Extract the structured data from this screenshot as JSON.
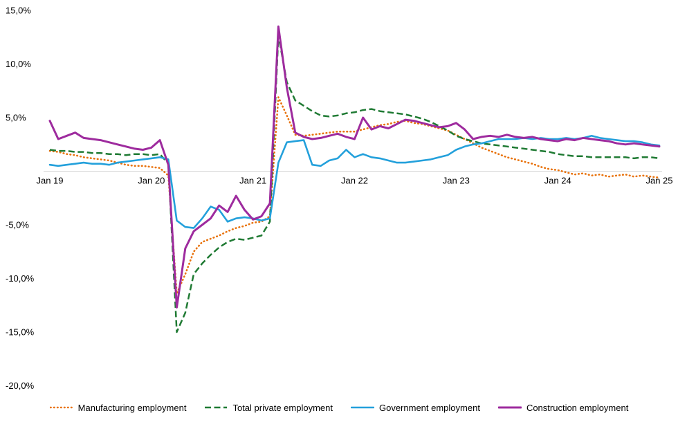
{
  "chart_data": {
    "type": "line",
    "grid": "off",
    "background": "#ffffff",
    "axis_color": "#d6d6d6",
    "x_axis": {
      "unit": "month",
      "start_label": "Jan 19",
      "end_label": "Jan 25",
      "ticks": [
        {
          "index": 0,
          "label": "Jan 19"
        },
        {
          "index": 12,
          "label": "Jan 20"
        },
        {
          "index": 24,
          "label": "Jan 21"
        },
        {
          "index": 36,
          "label": "Jan 22"
        },
        {
          "index": 48,
          "label": "Jan 23"
        },
        {
          "index": 60,
          "label": "Jan 24"
        },
        {
          "index": 72,
          "label": "Jan 25"
        }
      ]
    },
    "y_axis": {
      "min": -20,
      "max": 15,
      "ticks": [
        {
          "value": 15,
          "label": "15,0%"
        },
        {
          "value": 10,
          "label": "10,0%"
        },
        {
          "value": 5,
          "label": "5,0%"
        },
        {
          "value": -5,
          "label": "-5,0%"
        },
        {
          "value": -10,
          "label": "-10,0%"
        },
        {
          "value": -15,
          "label": "-15,0%"
        },
        {
          "value": -20,
          "label": "-20,0%"
        }
      ]
    },
    "legend": {
      "position": "bottom"
    },
    "series": [
      {
        "name": "Manufacturing employment",
        "color": "#e8720c",
        "style": "dotted",
        "values": [
          1.9,
          1.8,
          1.6,
          1.5,
          1.3,
          1.2,
          1.1,
          1.0,
          0.8,
          0.6,
          0.5,
          0.5,
          0.4,
          0.3,
          -0.4,
          -11.4,
          -9.6,
          -7.5,
          -6.6,
          -6.3,
          -6.0,
          -5.6,
          -5.3,
          -5.1,
          -4.8,
          -4.7,
          -4.2,
          6.9,
          5.2,
          3.4,
          3.3,
          3.4,
          3.5,
          3.6,
          3.7,
          3.7,
          3.7,
          3.9,
          4.1,
          4.3,
          4.4,
          4.6,
          4.7,
          4.5,
          4.4,
          4.2,
          4.0,
          3.8,
          3.4,
          3.0,
          2.6,
          2.2,
          1.9,
          1.6,
          1.3,
          1.1,
          0.9,
          0.7,
          0.4,
          0.2,
          0.1,
          -0.1,
          -0.3,
          -0.2,
          -0.4,
          -0.3,
          -0.5,
          -0.4,
          -0.3,
          -0.5,
          -0.4,
          -0.5,
          -0.6
        ]
      },
      {
        "name": "Total private employment",
        "color": "#1f7a33",
        "style": "dashed",
        "values": [
          2.0,
          1.9,
          1.9,
          1.8,
          1.8,
          1.7,
          1.7,
          1.6,
          1.6,
          1.5,
          1.6,
          1.6,
          1.5,
          1.6,
          0.7,
          -15.0,
          -13.2,
          -9.6,
          -8.6,
          -7.8,
          -7.1,
          -6.6,
          -6.3,
          -6.4,
          -6.2,
          -6.0,
          -4.7,
          12.7,
          8.3,
          6.6,
          6.1,
          5.6,
          5.2,
          5.1,
          5.2,
          5.4,
          5.5,
          5.7,
          5.8,
          5.6,
          5.5,
          5.4,
          5.3,
          5.1,
          4.9,
          4.6,
          4.2,
          3.8,
          3.3,
          3.0,
          2.8,
          2.6,
          2.5,
          2.4,
          2.3,
          2.2,
          2.1,
          2.0,
          1.9,
          1.8,
          1.6,
          1.5,
          1.4,
          1.4,
          1.3,
          1.3,
          1.3,
          1.3,
          1.3,
          1.2,
          1.3,
          1.3,
          1.2
        ]
      },
      {
        "name": "Government employment",
        "color": "#23a0db",
        "style": "solid",
        "values": [
          0.6,
          0.5,
          0.6,
          0.7,
          0.8,
          0.7,
          0.7,
          0.6,
          0.8,
          0.9,
          1.0,
          1.1,
          1.2,
          1.3,
          1.1,
          -4.6,
          -5.2,
          -5.3,
          -4.4,
          -3.3,
          -3.6,
          -4.7,
          -4.4,
          -4.3,
          -4.4,
          -4.6,
          -4.4,
          0.8,
          2.7,
          2.8,
          2.9,
          0.6,
          0.5,
          1.0,
          1.2,
          2.0,
          1.3,
          1.6,
          1.3,
          1.2,
          1.0,
          0.8,
          0.8,
          0.9,
          1.0,
          1.1,
          1.3,
          1.5,
          2.0,
          2.3,
          2.5,
          2.6,
          2.8,
          3.0,
          3.0,
          3.0,
          3.1,
          3.0,
          3.1,
          3.0,
          3.0,
          3.1,
          3.0,
          3.1,
          3.3,
          3.1,
          3.0,
          2.9,
          2.8,
          2.8,
          2.7,
          2.5,
          2.4
        ]
      },
      {
        "name": "Construction employment",
        "color": "#9e2b9e",
        "style": "solid",
        "values": [
          4.7,
          3.0,
          3.3,
          3.6,
          3.1,
          3.0,
          2.9,
          2.7,
          2.5,
          2.3,
          2.1,
          2.0,
          2.2,
          2.9,
          0.6,
          -12.7,
          -7.2,
          -5.6,
          -5.0,
          -4.4,
          -3.2,
          -3.8,
          -2.3,
          -3.6,
          -4.5,
          -4.2,
          -3.0,
          13.5,
          7.8,
          3.6,
          3.2,
          3.0,
          3.1,
          3.3,
          3.5,
          3.2,
          3.0,
          5.0,
          3.9,
          4.2,
          4.0,
          4.4,
          4.8,
          4.7,
          4.5,
          4.3,
          4.1,
          4.2,
          4.5,
          3.9,
          3.0,
          3.2,
          3.3,
          3.2,
          3.4,
          3.2,
          3.1,
          3.2,
          3.0,
          2.9,
          2.8,
          3.0,
          2.9,
          3.1,
          3.0,
          2.9,
          2.8,
          2.6,
          2.5,
          2.6,
          2.5,
          2.4,
          2.3
        ]
      }
    ]
  }
}
